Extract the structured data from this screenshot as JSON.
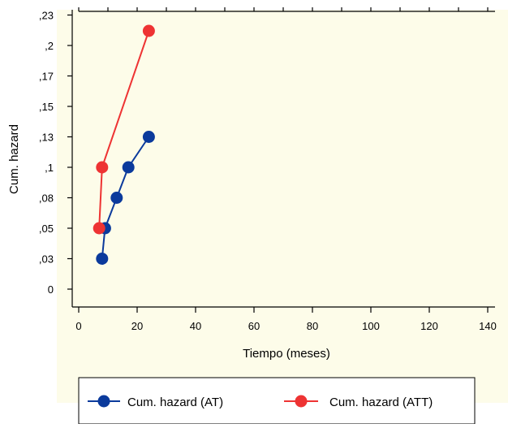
{
  "chart_data": {
    "type": "line",
    "title": "",
    "xlabel": "Tiempo (meses)",
    "ylabel": "Cum. hazard",
    "xlim": [
      -10,
      146
    ],
    "ylim": [
      -0.01,
      0.243
    ],
    "x_ticks": [
      0,
      20,
      40,
      60,
      80,
      100,
      120,
      140
    ],
    "x_tick_labels": [
      "0",
      "20",
      "40",
      "60",
      "80",
      "100",
      "120",
      "140"
    ],
    "y_ticks": [
      0,
      0.025,
      0.05,
      0.075,
      0.1,
      0.125,
      0.15,
      0.175,
      0.2,
      0.225
    ],
    "y_tick_labels": [
      "0",
      ",03",
      ",05",
      ",08",
      ",1",
      ",13",
      ",15",
      ",17",
      ",2",
      ",23"
    ],
    "grid": false,
    "legend_position": "bottom",
    "series": [
      {
        "name": "Cum. hazard (AT)",
        "color": "#0b3a9c",
        "x": [
          8,
          9,
          13,
          17,
          24
        ],
        "y": [
          0.025,
          0.05,
          0.075,
          0.1,
          0.125
        ]
      },
      {
        "name": "Cum. hazard (ATT)",
        "color": "#ee3333",
        "x": [
          7,
          8,
          24
        ],
        "y": [
          0.05,
          0.1,
          0.212
        ]
      }
    ],
    "plot_background": "#fdfce9"
  }
}
